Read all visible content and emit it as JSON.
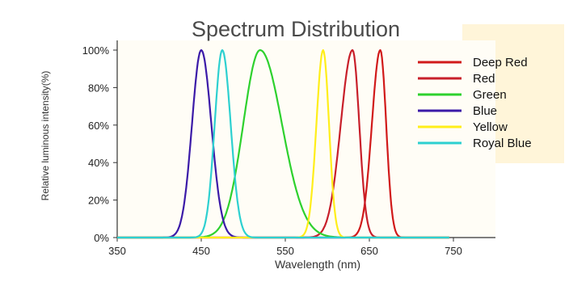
{
  "chart_data": {
    "type": "line",
    "title": "Spectrum Distribution",
    "xlabel": "Wavelength  (nm)",
    "ylabel": "Relative luminous intensity(%)",
    "xlim": [
      350,
      800
    ],
    "ylim": [
      0,
      100
    ],
    "xticks": [
      350,
      450,
      550,
      650,
      750
    ],
    "xtick_labels": [
      "350",
      "450",
      "550",
      "650",
      "750"
    ],
    "yticks": [
      0,
      20,
      40,
      60,
      80,
      100
    ],
    "ytick_labels": [
      "0%",
      "20%",
      "40%",
      "60%",
      "80%",
      "100%"
    ],
    "legend_position": "top-right",
    "grid": false,
    "series": [
      {
        "name": "Deep Red",
        "color": "#d11a1a",
        "peak": 663,
        "width_left": 10,
        "width_right": 7,
        "x": [
          620,
          640,
          650,
          655,
          660,
          663,
          666,
          670,
          675,
          680,
          690,
          700
        ],
        "y": [
          2,
          14,
          40,
          70,
          95,
          100,
          92,
          60,
          28,
          10,
          3,
          1
        ]
      },
      {
        "name": "Red",
        "color": "#c81f2a",
        "peak": 630,
        "width_left": 14,
        "width_right": 8,
        "x": [
          560,
          590,
          605,
          615,
          622,
          628,
          630,
          633,
          638,
          645,
          655,
          670,
          700
        ],
        "y": [
          1,
          5,
          14,
          32,
          62,
          95,
          100,
          90,
          55,
          22,
          6,
          2,
          0
        ]
      },
      {
        "name": "Green",
        "color": "#2ed12e",
        "peak": 520,
        "width_left": 20,
        "width_right": 26,
        "x": [
          460,
          480,
          495,
          505,
          512,
          520,
          528,
          540,
          555,
          570,
          590,
          610
        ],
        "y": [
          0,
          5,
          25,
          62,
          88,
          100,
          90,
          60,
          30,
          14,
          4,
          0
        ]
      },
      {
        "name": "Blue",
        "color": "#3b1aa8",
        "peak": 450,
        "width_left": 11,
        "width_right": 12,
        "x": [
          410,
          425,
          435,
          442,
          447,
          450,
          453,
          458,
          465,
          475,
          490,
          510
        ],
        "y": [
          0,
          4,
          28,
          68,
          95,
          100,
          95,
          72,
          35,
          10,
          2,
          0
        ]
      },
      {
        "name": "Yellow",
        "color": "#ffee1a",
        "peak": 595,
        "width_left": 8,
        "width_right": 7,
        "x": [
          570,
          580,
          587,
          591,
          595,
          598,
          602,
          608,
          615
        ],
        "y": [
          0,
          10,
          50,
          85,
          100,
          90,
          55,
          14,
          0
        ]
      },
      {
        "name": "Royal Blue",
        "color": "#2dd0d0",
        "peak": 475,
        "width_left": 9,
        "width_right": 10,
        "x": [
          440,
          455,
          463,
          470,
          475,
          480,
          487,
          495,
          505,
          520
        ],
        "y": [
          0,
          8,
          35,
          82,
          100,
          85,
          45,
          15,
          4,
          0
        ]
      }
    ]
  }
}
